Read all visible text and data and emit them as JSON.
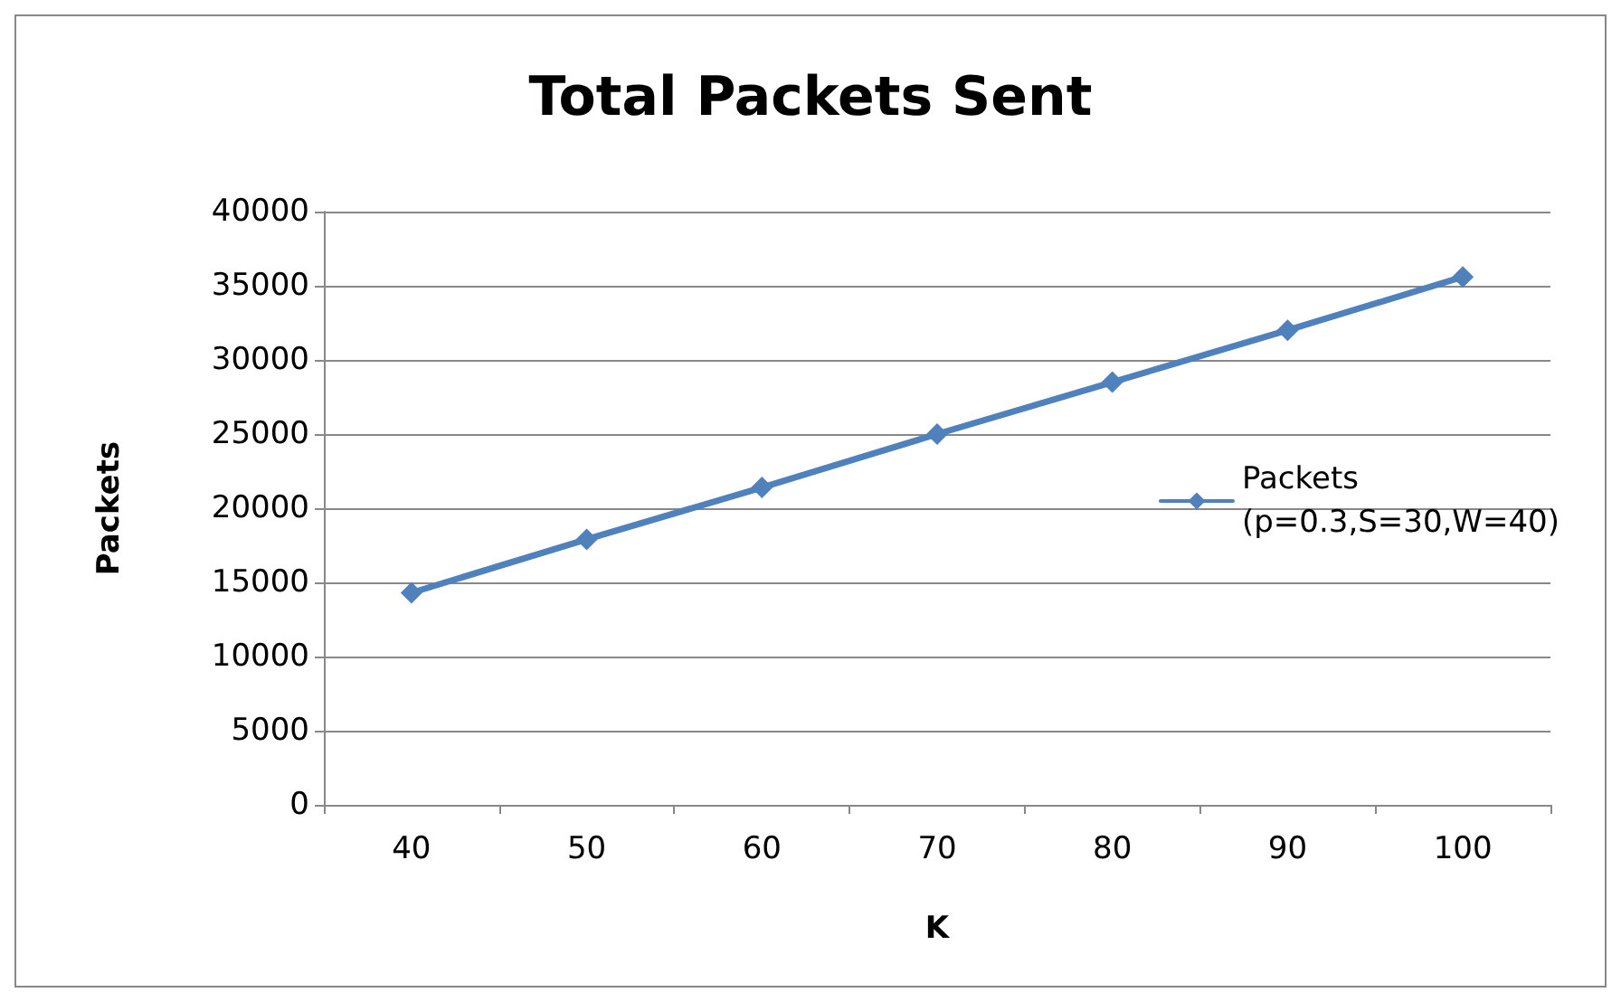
{
  "chart_data": {
    "type": "line",
    "title": "Total Packets Sent",
    "xlabel": "K",
    "ylabel": "Packets",
    "categories": [
      "40",
      "50",
      "60",
      "70",
      "80",
      "90",
      "100"
    ],
    "series": [
      {
        "name": "Packets\n(p=0.3,S=30,W=40)",
        "color": "#4f81bd",
        "values": [
          14300,
          17900,
          21400,
          25000,
          28500,
          32000,
          35600
        ]
      }
    ],
    "ylim": [
      0,
      40000
    ],
    "yticks": [
      0,
      5000,
      10000,
      15000,
      20000,
      25000,
      30000,
      35000,
      40000
    ],
    "grid": "y",
    "legend": "right",
    "marker": "diamond",
    "line_style": "solid"
  }
}
